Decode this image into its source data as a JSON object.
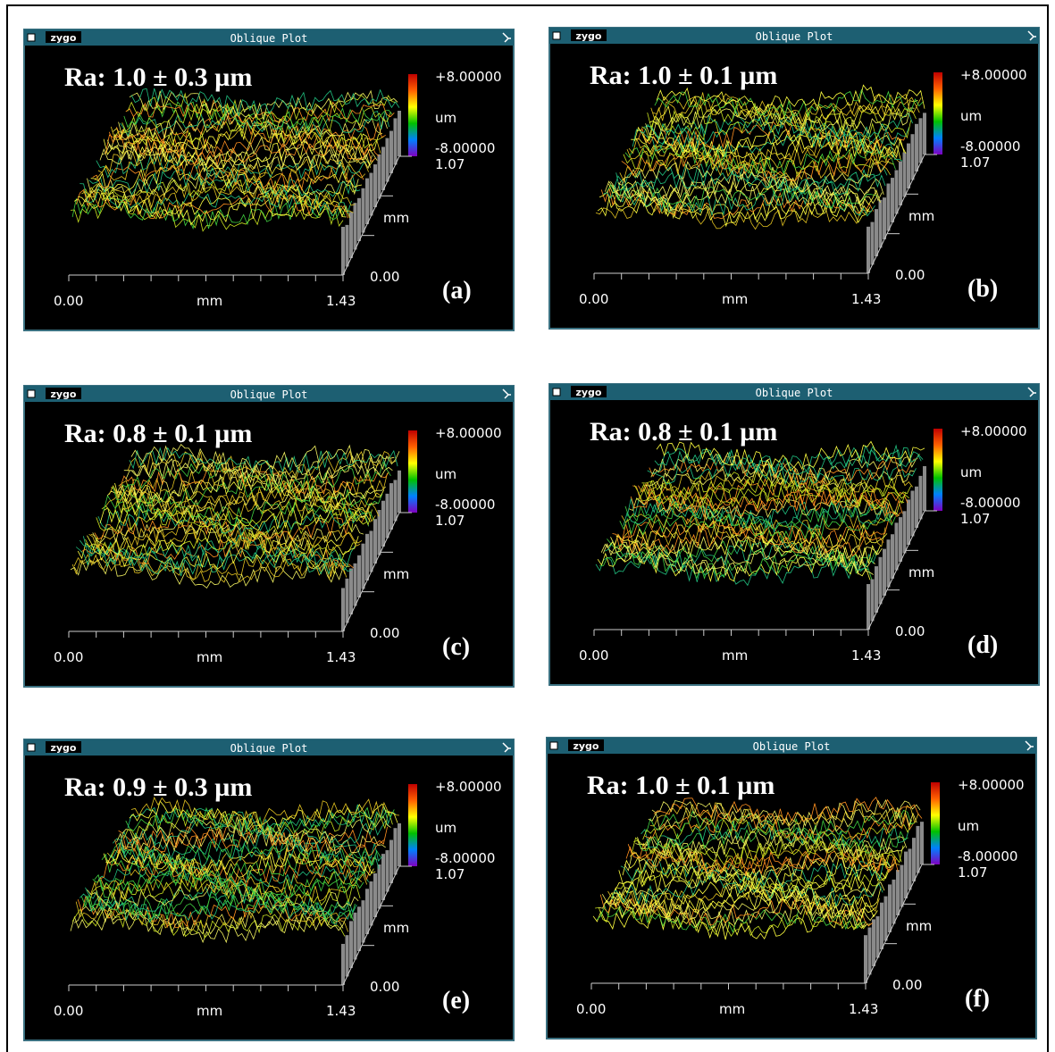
{
  "panels": [
    {
      "window_title": "Oblique Plot",
      "logo": "zygo",
      "ra": "Ra: 1.0 ± 0.3 µm",
      "scale_max": "+8.00000",
      "scale_unit": "um",
      "scale_min": "-8.00000",
      "y_max": "1.07",
      "y_unit": "mm",
      "y_min": "0.00",
      "x_min": "0.00",
      "x_unit": "mm",
      "x_max": "1.43",
      "label": "(a)"
    },
    {
      "window_title": "Oblique Plot",
      "logo": "zygo",
      "ra": "Ra: 1.0 ± 0.1 µm",
      "scale_max": "+8.00000",
      "scale_unit": "um",
      "scale_min": "-8.00000",
      "y_max": "1.07",
      "y_unit": "mm",
      "y_min": "0.00",
      "x_min": "0.00",
      "x_unit": "mm",
      "x_max": "1.43",
      "label": "(b)"
    },
    {
      "window_title": "Oblique Plot",
      "logo": "zygo",
      "ra": "Ra: 0.8 ± 0.1 µm",
      "scale_max": "+8.00000",
      "scale_unit": "um",
      "scale_min": "-8.00000",
      "y_max": "1.07",
      "y_unit": "mm",
      "y_min": "0.00",
      "x_min": "0.00",
      "x_unit": "mm",
      "x_max": "1.43",
      "label": "(c)"
    },
    {
      "window_title": "Oblique Plot",
      "logo": "zygo",
      "ra": "Ra: 0.8 ± 0.1 µm",
      "scale_max": "+8.00000",
      "scale_unit": "um",
      "scale_min": "-8.00000",
      "y_max": "1.07",
      "y_unit": "mm",
      "y_min": "0.00",
      "x_min": "0.00",
      "x_unit": "mm",
      "x_max": "1.43",
      "label": "(d)"
    },
    {
      "window_title": "Oblique Plot",
      "logo": "zygo",
      "ra": "Ra: 0.9 ± 0.3 µm",
      "scale_max": "+8.00000",
      "scale_unit": "um",
      "scale_min": "-8.00000",
      "y_max": "1.07",
      "y_unit": "mm",
      "y_min": "0.00",
      "x_min": "0.00",
      "x_unit": "mm",
      "x_max": "1.43",
      "label": "(e)"
    },
    {
      "window_title": "Oblique Plot",
      "logo": "zygo",
      "ra": "Ra: 1.0 ± 0.1 µm",
      "scale_max": "+8.00000",
      "scale_unit": "um",
      "scale_min": "-8.00000",
      "y_max": "1.07",
      "y_unit": "mm",
      "y_min": "0.00",
      "x_min": "0.00",
      "x_unit": "mm",
      "x_max": "1.43",
      "label": "(f)"
    }
  ]
}
